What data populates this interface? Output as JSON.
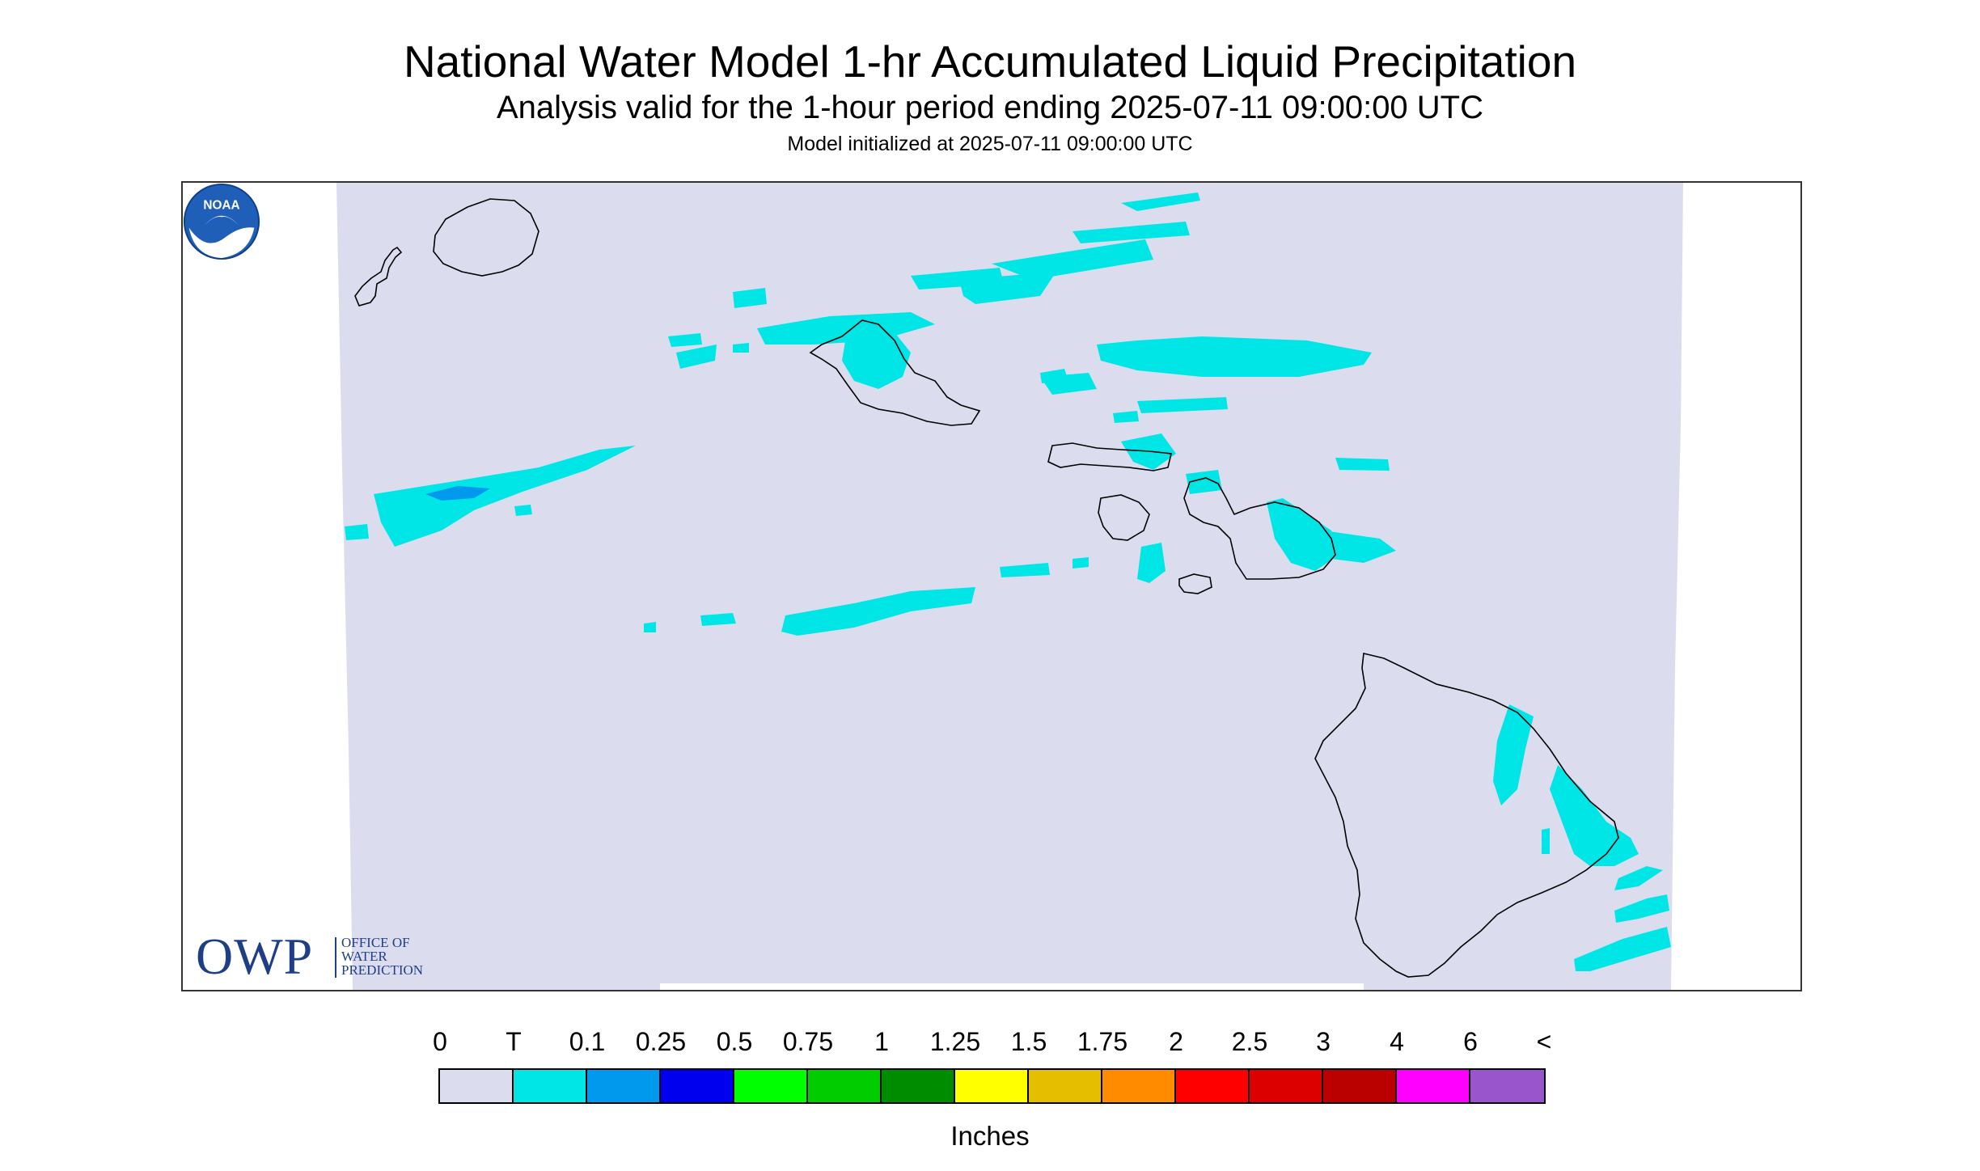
{
  "header": {
    "title": "National Water Model 1-hr Accumulated Liquid Precipitation",
    "subtitle": "Analysis valid for the 1-hour period ending 2025-07-11 09:00:00 UTC",
    "init": "Model initialized at 2025-07-11 09:00:00 UTC"
  },
  "logos": {
    "owp_big": "OWP",
    "owp_line1": "OFFICE OF",
    "owp_line2": "WATER",
    "owp_line3": "PREDICTION",
    "noaa": "NOAA"
  },
  "legend": {
    "labels": [
      "0",
      "T",
      "0.1",
      "0.25",
      "0.5",
      "0.75",
      "1",
      "1.25",
      "1.5",
      "1.75",
      "2",
      "2.5",
      "3",
      "4",
      "6",
      "<"
    ],
    "colors": [
      "#dcdcef",
      "#00e6e6",
      "#0099ee",
      "#0000ee",
      "#00ff00",
      "#00cc00",
      "#008c00",
      "#ffff00",
      "#e6be00",
      "#ff8c00",
      "#ff0000",
      "#dd0000",
      "#bb0000",
      "#ff00ff",
      "#9955cc"
    ],
    "units": "Inches"
  },
  "map": {
    "domain_color": "#dcdcef",
    "trace_color": "#00e6e6",
    "light_color": "#0099ee"
  }
}
